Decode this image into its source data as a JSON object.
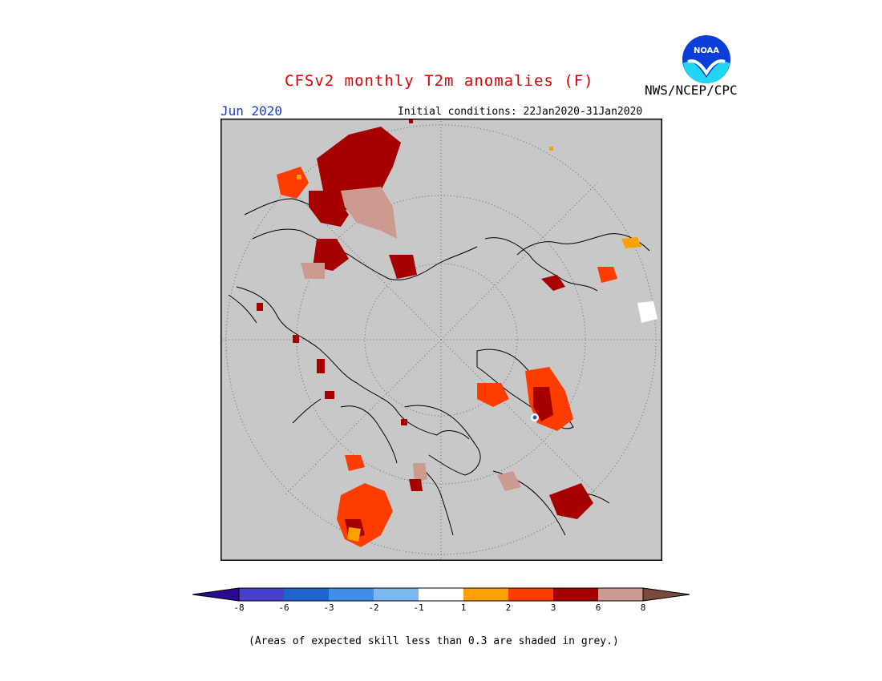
{
  "header": {
    "title": "CFSv2 monthly T2m anomalies (F)",
    "month": "Jun 2020",
    "initial_conditions": "Initial conditions: 22Jan2020-31Jan2020",
    "agency": "NWS/NCEP/CPC",
    "logo_text": "NOAA"
  },
  "colorbar": {
    "labels": [
      "-8",
      "-6",
      "-3",
      "-2",
      "-1",
      "1",
      "2",
      "3",
      "6",
      "8"
    ],
    "colors": {
      "below_min": "#2a0a8e",
      "-8_-6": "#4a3fc9",
      "-6_-3": "#1f63d1",
      "-3_-2": "#3f8ee8",
      "-2_-1": "#7bb7f0",
      "-1_1": "#ffffff",
      "1_2": "#ffa000",
      "2_3": "#ff3c00",
      "3_6": "#a60000",
      "6_8": "#cc9a8e",
      "above_max": "#7a4a3a"
    }
  },
  "footnote": "(Areas of expected skill less than 0.3 are shaded in grey.)",
  "map": {
    "projection": "polar-stereographic",
    "background_color": "#c8c8c8",
    "anomaly_regions": [
      {
        "name": "alaska-region",
        "category": "3_6"
      },
      {
        "name": "greenland-region",
        "category": "2_3"
      },
      {
        "name": "western-europe-region",
        "category": "2_3"
      },
      {
        "name": "east-siberia-region",
        "category": "3_6"
      },
      {
        "name": "eastern-canada-region",
        "category": "6_8"
      }
    ]
  }
}
